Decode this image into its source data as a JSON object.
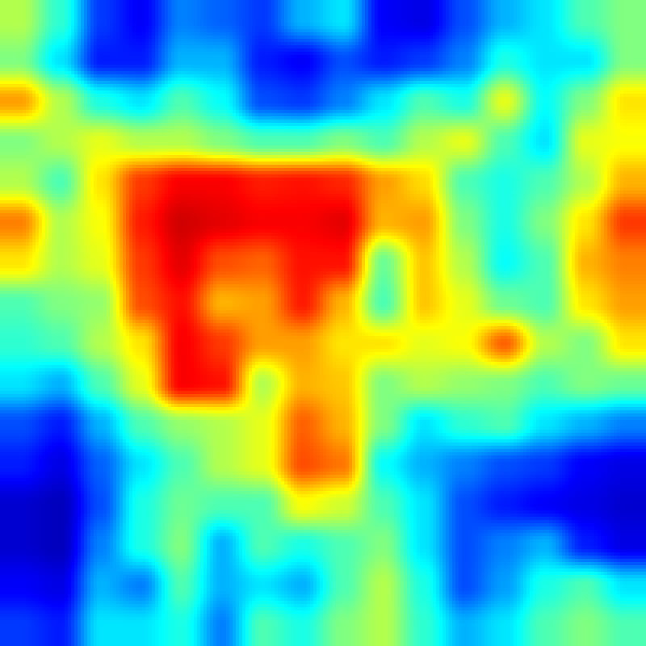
{
  "chart_data": {
    "type": "heatmap",
    "colormap": "jet",
    "colormap_stops": [
      "#00007f",
      "#0000ff",
      "#0080ff",
      "#00ffff",
      "#80ff80",
      "#ffff00",
      "#ff8000",
      "#ff0000",
      "#7f0000"
    ],
    "value_range": [
      0,
      1
    ],
    "grid_size": [
      16,
      16
    ],
    "axes_visible": false,
    "colorbar": false,
    "legend": "none",
    "values": [
      [
        0.55,
        0.42,
        0.18,
        0.12,
        0.25,
        0.22,
        0.18,
        0.3,
        0.35,
        0.12,
        0.1,
        0.2,
        0.3,
        0.35,
        0.45,
        0.5
      ],
      [
        0.5,
        0.35,
        0.15,
        0.15,
        0.3,
        0.3,
        0.15,
        0.12,
        0.2,
        0.15,
        0.18,
        0.25,
        0.4,
        0.35,
        0.35,
        0.5
      ],
      [
        0.72,
        0.55,
        0.4,
        0.35,
        0.45,
        0.38,
        0.2,
        0.18,
        0.25,
        0.35,
        0.45,
        0.4,
        0.6,
        0.38,
        0.5,
        0.65
      ],
      [
        0.5,
        0.55,
        0.6,
        0.55,
        0.55,
        0.5,
        0.45,
        0.45,
        0.5,
        0.45,
        0.55,
        0.6,
        0.45,
        0.35,
        0.6,
        0.62
      ],
      [
        0.55,
        0.45,
        0.65,
        0.82,
        0.88,
        0.88,
        0.85,
        0.86,
        0.84,
        0.72,
        0.66,
        0.45,
        0.4,
        0.45,
        0.55,
        0.7
      ],
      [
        0.75,
        0.55,
        0.62,
        0.85,
        0.92,
        0.9,
        0.88,
        0.88,
        0.9,
        0.7,
        0.72,
        0.5,
        0.4,
        0.5,
        0.65,
        0.82
      ],
      [
        0.65,
        0.55,
        0.6,
        0.82,
        0.9,
        0.8,
        0.78,
        0.86,
        0.86,
        0.48,
        0.68,
        0.55,
        0.38,
        0.45,
        0.7,
        0.75
      ],
      [
        0.45,
        0.5,
        0.52,
        0.8,
        0.86,
        0.7,
        0.72,
        0.85,
        0.7,
        0.45,
        0.68,
        0.6,
        0.48,
        0.45,
        0.65,
        0.72
      ],
      [
        0.42,
        0.45,
        0.55,
        0.65,
        0.88,
        0.82,
        0.72,
        0.72,
        0.65,
        0.65,
        0.6,
        0.62,
        0.78,
        0.55,
        0.5,
        0.65
      ],
      [
        0.35,
        0.3,
        0.45,
        0.6,
        0.88,
        0.86,
        0.55,
        0.7,
        0.68,
        0.5,
        0.55,
        0.52,
        0.5,
        0.45,
        0.5,
        0.48
      ],
      [
        0.2,
        0.15,
        0.3,
        0.45,
        0.52,
        0.55,
        0.6,
        0.78,
        0.7,
        0.5,
        0.35,
        0.42,
        0.45,
        0.35,
        0.3,
        0.25
      ],
      [
        0.15,
        0.1,
        0.22,
        0.35,
        0.45,
        0.55,
        0.6,
        0.8,
        0.76,
        0.38,
        0.3,
        0.25,
        0.2,
        0.18,
        0.12,
        0.1
      ],
      [
        0.08,
        0.06,
        0.2,
        0.4,
        0.48,
        0.45,
        0.45,
        0.62,
        0.58,
        0.45,
        0.35,
        0.2,
        0.15,
        0.12,
        0.1,
        0.08
      ],
      [
        0.08,
        0.06,
        0.25,
        0.4,
        0.5,
        0.3,
        0.45,
        0.4,
        0.45,
        0.5,
        0.35,
        0.2,
        0.25,
        0.3,
        0.15,
        0.1
      ],
      [
        0.12,
        0.1,
        0.3,
        0.25,
        0.45,
        0.3,
        0.35,
        0.3,
        0.45,
        0.55,
        0.4,
        0.2,
        0.28,
        0.4,
        0.45,
        0.35
      ],
      [
        0.18,
        0.15,
        0.35,
        0.35,
        0.4,
        0.25,
        0.45,
        0.4,
        0.5,
        0.55,
        0.42,
        0.3,
        0.35,
        0.45,
        0.5,
        0.45
      ]
    ]
  }
}
